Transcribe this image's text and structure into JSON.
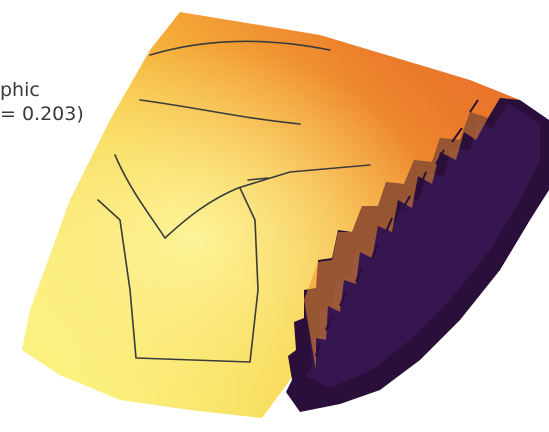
{
  "figure": {
    "caption_line_1": "phic",
    "caption_line_2": "= 0.203)"
  },
  "palette": {
    "light": "#f9ec62",
    "mid": "#f6c43a",
    "orange": "#f0902a",
    "deep_orange": "#e8742a",
    "dark": "#2a0f3a",
    "purple": "#3a1856",
    "outline": "#3b3b3b"
  }
}
